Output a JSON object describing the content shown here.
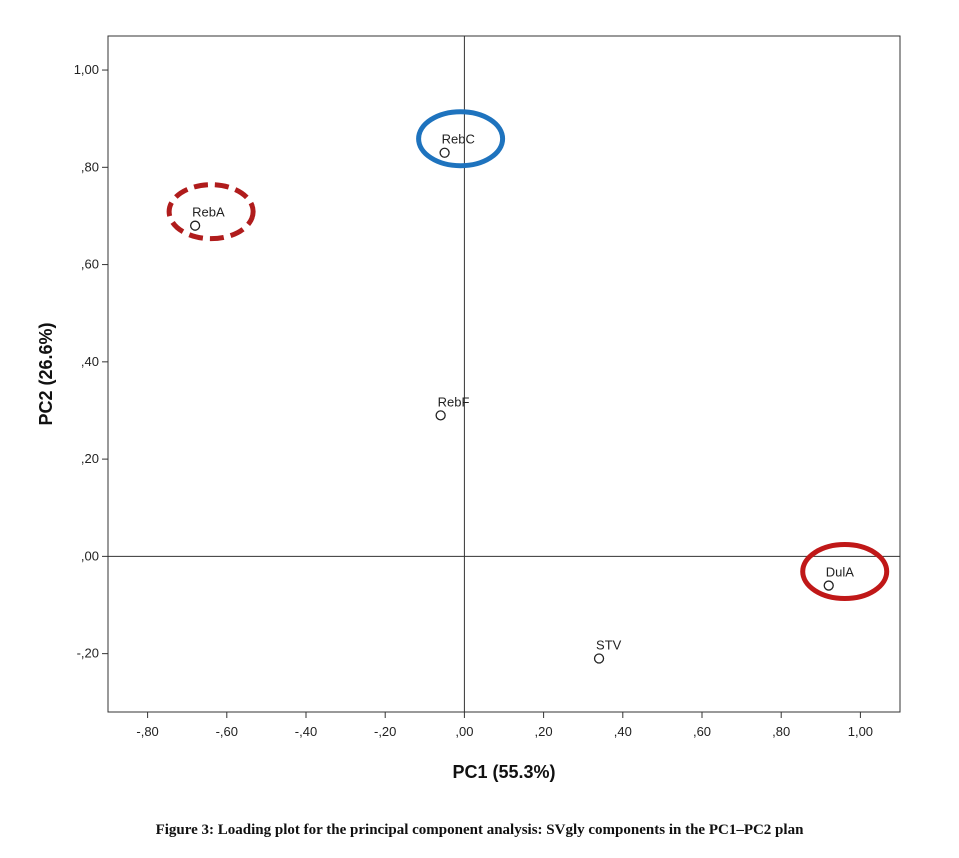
{
  "chart_data": {
    "type": "scatter",
    "xlabel": "PC1 (55.3%)",
    "ylabel": "PC2 (26.6%)",
    "xlim": [
      -0.9,
      1.1
    ],
    "ylim": [
      -0.32,
      1.07
    ],
    "xticks": [
      -0.8,
      -0.6,
      -0.4,
      -0.2,
      0.0,
      0.2,
      0.4,
      0.6,
      0.8,
      1.0
    ],
    "xtick_labels": [
      "-,80",
      "-,60",
      "-,40",
      "-,20",
      ",00",
      ",20",
      ",40",
      ",60",
      ",80",
      "1,00"
    ],
    "yticks": [
      -0.2,
      0.0,
      0.2,
      0.4,
      0.6,
      0.8,
      1.0
    ],
    "ytick_labels": [
      "-,20",
      ",00",
      ",20",
      ",40",
      ",60",
      ",80",
      "1,00"
    ],
    "reference_lines": {
      "x": 0,
      "y": 0
    },
    "grid": false,
    "points": [
      {
        "label": "RebA",
        "x": -0.68,
        "y": 0.68
      },
      {
        "label": "RebC",
        "x": -0.05,
        "y": 0.83
      },
      {
        "label": "RebF",
        "x": -0.06,
        "y": 0.29
      },
      {
        "label": "STV",
        "x": 0.34,
        "y": -0.21
      },
      {
        "label": "DulA",
        "x": 0.92,
        "y": -0.06
      }
    ],
    "highlights": [
      {
        "label": "RebA",
        "color": "#b01c1c",
        "style": "dashed"
      },
      {
        "label": "RebC",
        "color": "#1e73be",
        "style": "solid"
      },
      {
        "label": "DulA",
        "color": "#c01818",
        "style": "solid"
      }
    ]
  },
  "caption": "Figure 3: Loading plot for the principal component analysis: SVgly components in the PC1–PC2 plan"
}
